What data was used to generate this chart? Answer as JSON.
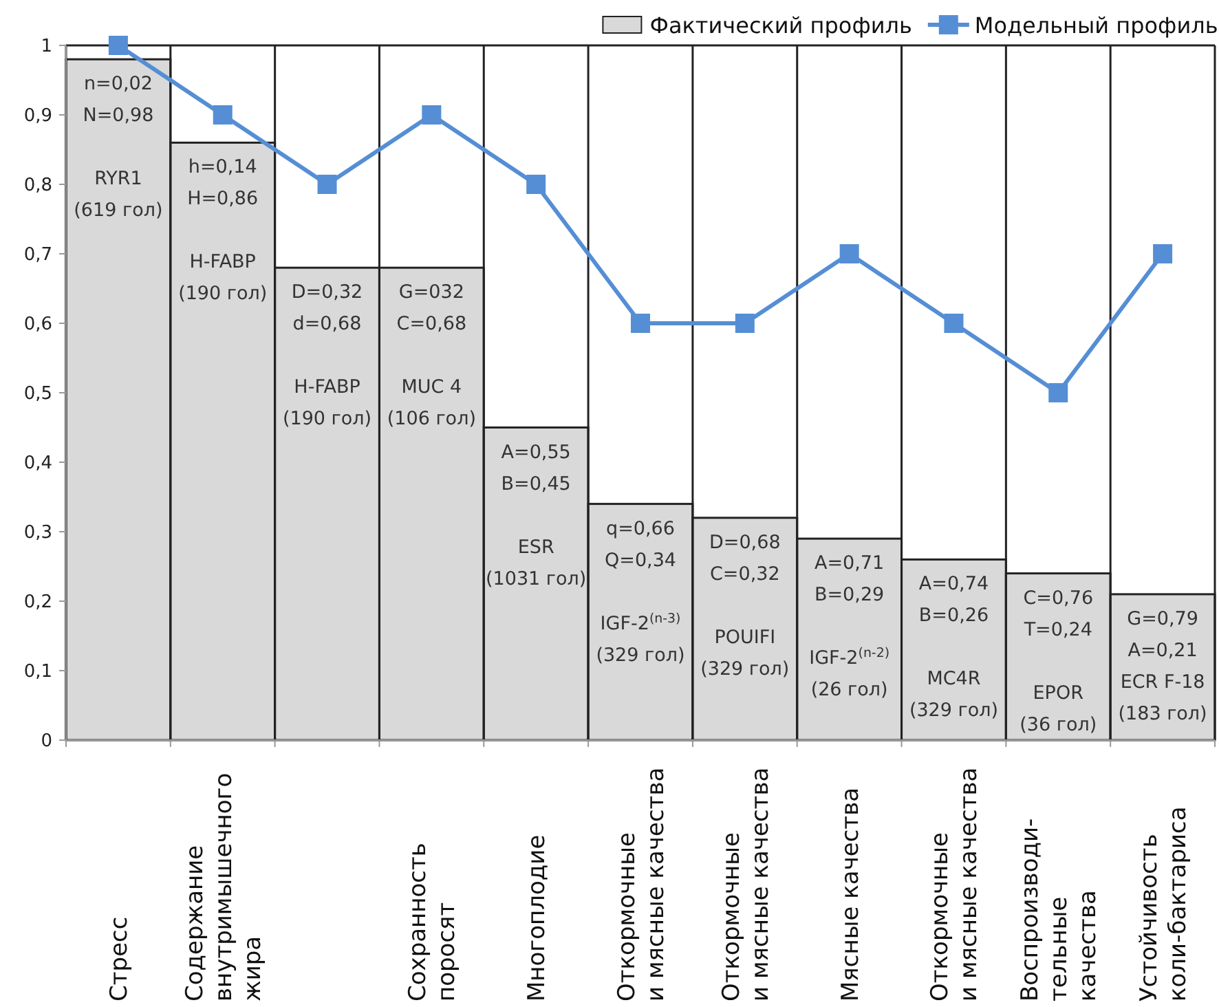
{
  "chart_data": {
    "type": "bar",
    "categories": [
      "Стресс",
      "Содержание\nвнутримышечного\nжира",
      null,
      "Сохранность\nпоросят",
      "Многоплодие",
      "Откормочные\nи мясные качества",
      "Откормочные\nи мясные качества",
      "Мясные качества",
      "Откормочные\nи мясные качества",
      "Воспроизводи-\nтельные\nкачества",
      "Устойчивость\nколи-бактариса"
    ],
    "series": [
      {
        "name": "Фактический профиль",
        "color": "#d9d9d9",
        "values": [
          0.98,
          0.86,
          0.68,
          0.68,
          0.45,
          0.34,
          0.32,
          0.29,
          0.26,
          0.24,
          0.21
        ]
      },
      {
        "name": "Модельный профиль",
        "type": "line",
        "color": "#558ed5",
        "marker": "square",
        "values": [
          1,
          0.9,
          0.8,
          0.9,
          0.8,
          0.6,
          0.6,
          0.7,
          0.6,
          0.5,
          0.7
        ]
      }
    ],
    "ylim": [
      0,
      1
    ],
    "yticks": [
      0,
      {
        "value": 0.1,
        "label": "0,1"
      },
      {
        "value": 0.2,
        "label": "0,2"
      },
      {
        "value": 0.3,
        "label": "0,3"
      },
      {
        "value": 0.4,
        "label": "0,4"
      },
      {
        "value": 0.5,
        "label": "0,5"
      },
      {
        "value": 0.6,
        "label": "0,6"
      },
      {
        "value": 0.7,
        "label": "0,7"
      },
      {
        "value": 0.8,
        "label": "0,8"
      },
      {
        "value": 0.9,
        "label": "0,9"
      },
      1
    ],
    "grid": "x",
    "legend": "top right",
    "annotations": [
      "n=0,02\nN=0,98\n\nRYR1\n(619 гол)",
      "h=0,14\nH=0,86\n\nH-FABP\n(190 гол)",
      "D=0,32\nd=0,68\n\nH-FABP\n(190 гол)",
      "G=032\nC=0,68\n\nMUC 4\n(106 гол)",
      "A=0,55\nB=0,45\n\nESR\n(1031 гол)",
      "q=0,66\nQ=0,34\n\nIGF-2$^{(n-3)}$\n(329 гол)",
      "D=0,68\nC=0,32\n\nPOUIFI\n(329 гол)",
      "A=0,71\nB=0,29\n\nIGF-2$^{(n-2)}$\n(26 гол)",
      "A=0,74\nB=0,26\n\nMC4R\n(329 гол)",
      "C=0,76\nT=0,24\n\nEPOR\n(36 гол)",
      "G=0,79\nA=0,21\nECR F-18\n(183 гол)"
    ]
  }
}
